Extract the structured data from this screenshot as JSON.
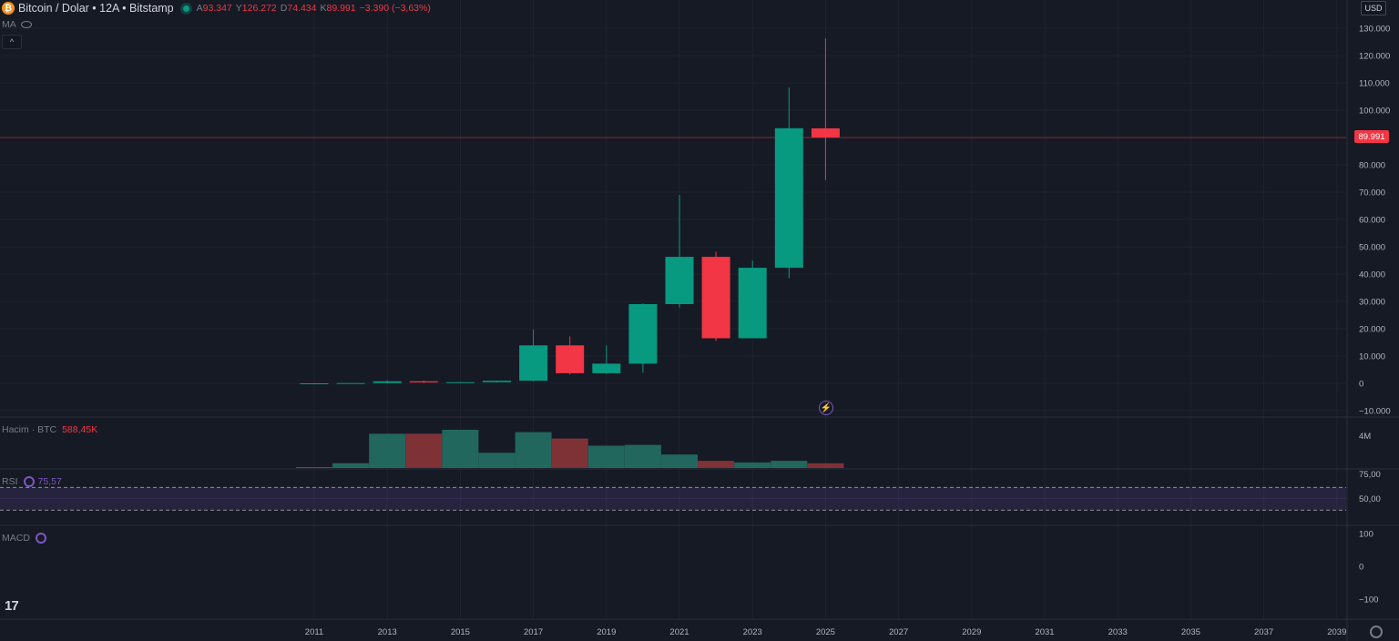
{
  "header": {
    "symbol_logo": "₿",
    "symbol_title": "Bitcoin / Dolar • 12A • Bitstamp",
    "open_label": "A",
    "open_value": "93.347",
    "high_label": "Y",
    "high_value": "126.272",
    "low_label": "D",
    "low_value": "74.434",
    "close_label": "K",
    "close_value": "89.991",
    "change": "−3.390 (−3,63%)"
  },
  "indicators": {
    "ma_label": "MA",
    "collapse_icon": "chevron-up-icon",
    "volume_label": "Hacim · BTC",
    "volume_value": "588,45K",
    "rsi_label": "RSI",
    "rsi_value": "75,57",
    "macd_label": "MACD"
  },
  "price_scale": {
    "currency": "USD",
    "last_price": "89.991",
    "ticks": [
      "130.000",
      "120.000",
      "110.000",
      "100.000",
      "90.000",
      "80.000",
      "70.000",
      "60.000",
      "50.000",
      "40.000",
      "30.000",
      "20.000",
      "10.000",
      "0",
      "−10.000"
    ],
    "volume_tick": "4M",
    "rsi_ticks": [
      "75,00",
      "50,00"
    ],
    "macd_ticks": [
      "100",
      "0",
      "−100"
    ]
  },
  "time_axis": {
    "labels": [
      "2011",
      "2013",
      "2015",
      "2017",
      "2019",
      "2021",
      "2023",
      "2025",
      "2027",
      "2029",
      "2031",
      "2033",
      "2035",
      "2037",
      "2039"
    ]
  },
  "branding": {
    "logo": "17"
  },
  "colors": {
    "up": "#089981",
    "down": "#f23645",
    "background": "#161a25",
    "rsi": "#7e57c2"
  },
  "chart_data": {
    "type": "candlestick",
    "title": "Bitcoin / Dolar • 12A • Bitstamp",
    "interval": "12 months",
    "ylim": [
      -12000,
      132000
    ],
    "xlim": [
      2010,
      2040
    ],
    "candles": [
      {
        "year": 2011,
        "open": 0,
        "high": 0,
        "low": 0,
        "close": 0
      },
      {
        "year": 2012,
        "open": 0,
        "high": 0,
        "low": 0,
        "close": 100
      },
      {
        "year": 2013,
        "open": 100,
        "high": 1100,
        "low": 0,
        "close": 750
      },
      {
        "year": 2014,
        "open": 750,
        "high": 1000,
        "low": 200,
        "close": 320
      },
      {
        "year": 2015,
        "open": 320,
        "high": 500,
        "low": 150,
        "close": 430
      },
      {
        "year": 2016,
        "open": 430,
        "high": 1000,
        "low": 350,
        "close": 960
      },
      {
        "year": 2017,
        "open": 960,
        "high": 19700,
        "low": 750,
        "close": 13900
      },
      {
        "year": 2018,
        "open": 13900,
        "high": 17200,
        "low": 3200,
        "close": 3700
      },
      {
        "year": 2019,
        "open": 3700,
        "high": 13900,
        "low": 3400,
        "close": 7200
      },
      {
        "year": 2020,
        "open": 7200,
        "high": 29300,
        "low": 3900,
        "close": 29000
      },
      {
        "year": 2021,
        "open": 29000,
        "high": 69000,
        "low": 27700,
        "close": 46300
      },
      {
        "year": 2022,
        "open": 46300,
        "high": 48200,
        "low": 15500,
        "close": 16500
      },
      {
        "year": 2023,
        "open": 16500,
        "high": 45000,
        "low": 16500,
        "close": 42300
      },
      {
        "year": 2024,
        "open": 42300,
        "high": 108300,
        "low": 38500,
        "close": 93400
      },
      {
        "year": 2025,
        "open": 93347,
        "high": 126272,
        "low": 74434,
        "close": 89991
      }
    ],
    "volume": {
      "label": "Hacim · BTC",
      "unit": "BTC",
      "values": [
        {
          "year": 2011,
          "value": 50000
        },
        {
          "year": 2012,
          "value": 600000
        },
        {
          "year": 2013,
          "value": 4300000
        },
        {
          "year": 2014,
          "value": 4300000
        },
        {
          "year": 2015,
          "value": 4800000
        },
        {
          "year": 2016,
          "value": 1900000
        },
        {
          "year": 2017,
          "value": 4500000
        },
        {
          "year": 2018,
          "value": 3700000
        },
        {
          "year": 2019,
          "value": 2800000
        },
        {
          "year": 2020,
          "value": 2900000
        },
        {
          "year": 2021,
          "value": 1700000
        },
        {
          "year": 2022,
          "value": 900000
        },
        {
          "year": 2023,
          "value": 700000
        },
        {
          "year": 2024,
          "value": 900000
        },
        {
          "year": 2025,
          "value": 588450
        }
      ]
    },
    "rsi": {
      "value": 75.57,
      "upper_band": 70,
      "lower_band": 30,
      "ticks": [
        75,
        50
      ]
    },
    "macd": {
      "ticks": [
        100,
        0,
        -100
      ]
    }
  }
}
